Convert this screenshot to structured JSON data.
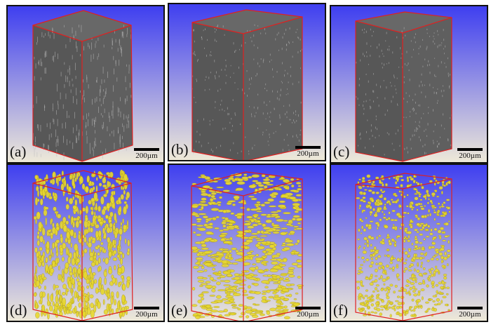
{
  "panels": [
    {
      "id": "a",
      "label": "(a)",
      "type": "grayscale",
      "scale_bar": "200µm"
    },
    {
      "id": "b",
      "label": "(b)",
      "type": "grayscale",
      "scale_bar": "200µm"
    },
    {
      "id": "c",
      "label": "(c)",
      "type": "grayscale",
      "scale_bar": "200µm"
    },
    {
      "id": "d",
      "label": "(d)",
      "type": "pores",
      "scale_bar": "200µm"
    },
    {
      "id": "e",
      "label": "(e)",
      "type": "pores",
      "scale_bar": "200µm"
    },
    {
      "id": "f",
      "label": "(f)",
      "type": "pores",
      "scale_bar": "200µm"
    }
  ],
  "colors": {
    "background_top": "#3f3ff0",
    "background_bottom": "#eee9d8",
    "edge": "#e02020",
    "sample": "#5a5a5a",
    "pore": "#e8d830"
  }
}
